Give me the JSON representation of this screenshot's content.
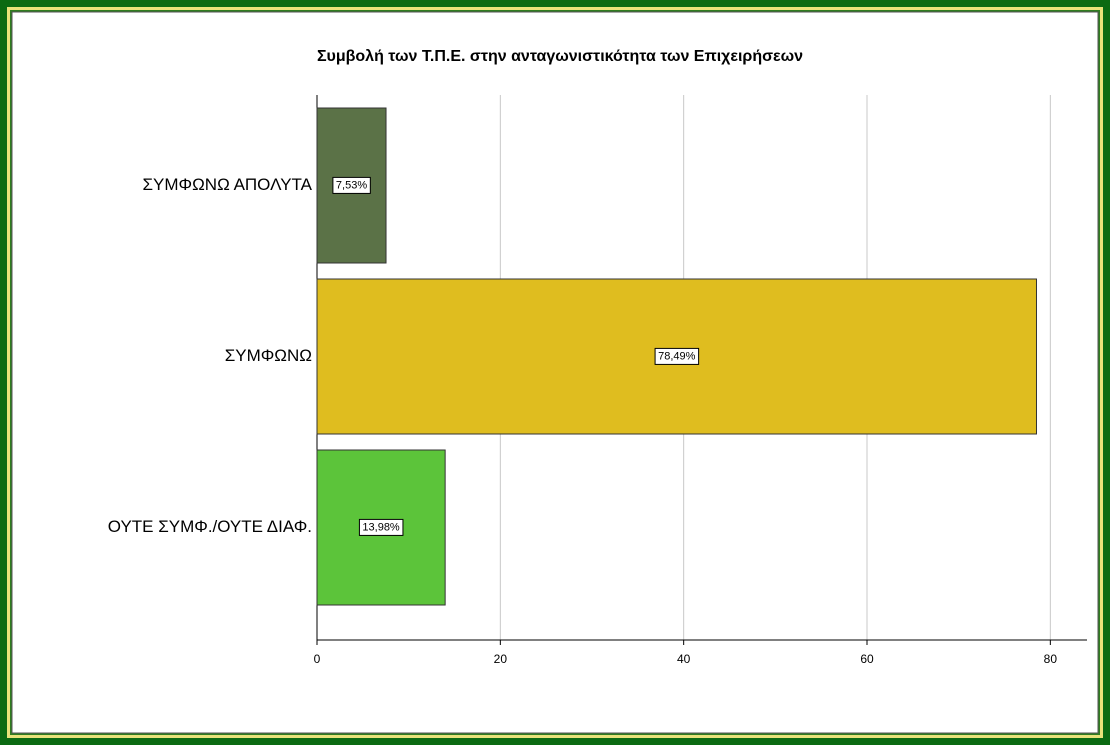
{
  "chart_data": {
    "type": "bar",
    "orientation": "horizontal",
    "title": "Συμβολή των Τ.Π.Ε. στην ανταγωνιστικότητα των Επιχειρήσεων",
    "categories": [
      "ΣΥΜΦΩΝΩ ΑΠΟΛΥΤΑ",
      "ΣΥΜΦΩΝΩ",
      "ΟΥΤΕ ΣΥΜΦ./ΟΥΤΕ ΔΙΑΦ."
    ],
    "values": [
      7.53,
      78.49,
      13.98
    ],
    "value_labels": [
      "7,53%",
      "78,49%",
      "13,98%"
    ],
    "colors": [
      "#5b7247",
      "#dfbd1f",
      "#5cc43a"
    ],
    "xlim": [
      0,
      84
    ],
    "xticks": [
      0,
      20,
      40,
      60,
      80
    ],
    "grid": true
  }
}
